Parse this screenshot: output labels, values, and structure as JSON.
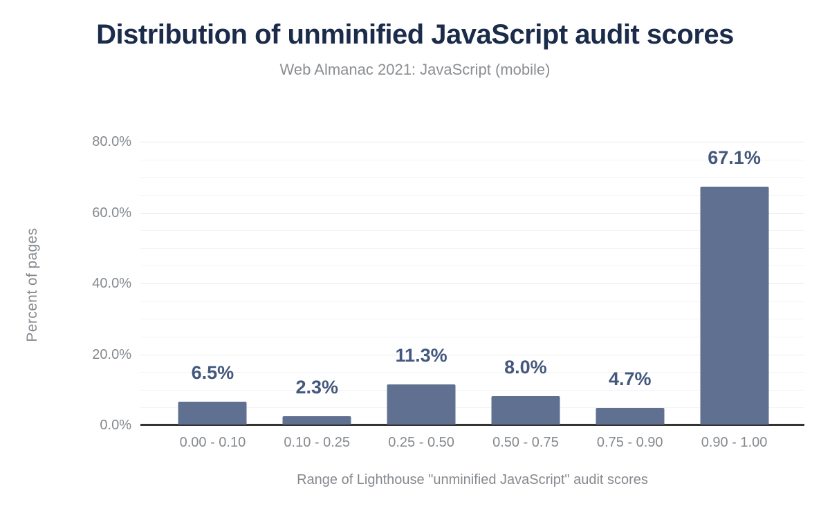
{
  "chart_data": {
    "type": "bar",
    "title": "Distribution of unminified JavaScript audit scores",
    "subtitle": "Web Almanac 2021: JavaScript (mobile)",
    "categories": [
      "0.00 - 0.10",
      "0.10 - 0.25",
      "0.25 - 0.50",
      "0.50 - 0.75",
      "0.75 - 0.90",
      "0.90 - 1.00"
    ],
    "values": [
      6.5,
      2.3,
      11.3,
      8.0,
      4.7,
      67.1
    ],
    "data_labels": [
      "6.5%",
      "2.3%",
      "11.3%",
      "8.0%",
      "4.7%",
      "67.1%"
    ],
    "xlabel": "Range of Lighthouse \"unminified JavaScript\" audit scores",
    "ylabel": "Percent of pages",
    "ylim": [
      0,
      80
    ],
    "yticks": [
      "0.0%",
      "20.0%",
      "40.0%",
      "60.0%",
      "80.0%"
    ],
    "ytick_values": [
      0,
      20,
      40,
      60,
      80
    ],
    "grid": "horizontal; minor every 5%, major every 20%; no vertical grid",
    "legend": "none",
    "colors": {
      "bar": "#5f7090",
      "data_label": "#44587e",
      "title": "#1b2b4a",
      "subtitle": "#8b8e92",
      "axis_text": "#85898e",
      "axis_line": "#333333",
      "grid_major": "#e7e9eb",
      "grid_minor": "#f3f4f6",
      "background": "#ffffff"
    }
  }
}
